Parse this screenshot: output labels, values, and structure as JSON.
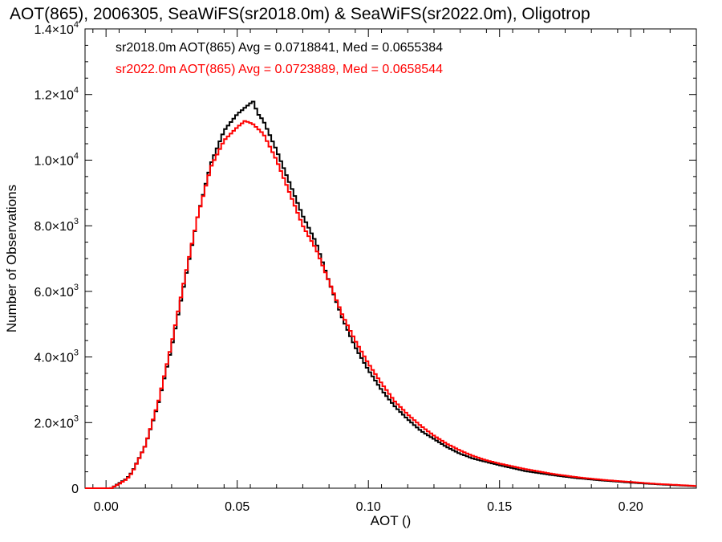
{
  "chart_data": {
    "type": "line",
    "title": "AOT(865), 2006305, SeaWiFS(sr2018.0m) & SeaWiFS(sr2022.0m), Oligotrop",
    "xlabel": "AOT ()",
    "ylabel": "Number of Observations",
    "xlim": [
      -0.008,
      0.225
    ],
    "ylim": [
      0,
      14000
    ],
    "x_ticks": [
      {
        "value": 0.0,
        "label": "0.00"
      },
      {
        "value": 0.05,
        "label": "0.05"
      },
      {
        "value": 0.1,
        "label": "0.10"
      },
      {
        "value": 0.15,
        "label": "0.15"
      },
      {
        "value": 0.2,
        "label": "0.20"
      }
    ],
    "y_ticks": [
      {
        "value": 0,
        "mantissa": "0",
        "exponent": ""
      },
      {
        "value": 2000,
        "mantissa": "2.0×10",
        "exponent": "3"
      },
      {
        "value": 4000,
        "mantissa": "4.0×10",
        "exponent": "3"
      },
      {
        "value": 6000,
        "mantissa": "6.0×10",
        "exponent": "3"
      },
      {
        "value": 8000,
        "mantissa": "8.0×10",
        "exponent": "3"
      },
      {
        "value": 10000,
        "mantissa": "1.0×10",
        "exponent": "4"
      },
      {
        "value": 12000,
        "mantissa": "1.2×10",
        "exponent": "4"
      },
      {
        "value": 14000,
        "mantissa": "1.4×10",
        "exponent": "4"
      }
    ],
    "grid": false,
    "legend_position": "top-left",
    "series": [
      {
        "name": "sr2018.0m",
        "label": "sr2018.0m AOT(865) Avg = 0.0718841, Med = 0.0655384",
        "color": "#000000",
        "x": [
          -0.008,
          0.0,
          0.002,
          0.005,
          0.008,
          0.01,
          0.015,
          0.02,
          0.025,
          0.03,
          0.035,
          0.04,
          0.045,
          0.05,
          0.053,
          0.056,
          0.058,
          0.06,
          0.065,
          0.07,
          0.075,
          0.08,
          0.085,
          0.09,
          0.095,
          0.1,
          0.105,
          0.11,
          0.115,
          0.12,
          0.125,
          0.13,
          0.135,
          0.14,
          0.145,
          0.15,
          0.16,
          0.17,
          0.18,
          0.19,
          0.2,
          0.21,
          0.225
        ],
        "y": [
          0,
          0,
          0,
          150,
          300,
          500,
          1300,
          2600,
          4300,
          6300,
          8300,
          9900,
          10900,
          11400,
          11600,
          11800,
          11400,
          11200,
          10300,
          9300,
          8300,
          7500,
          6300,
          5200,
          4300,
          3600,
          3000,
          2500,
          2100,
          1750,
          1500,
          1250,
          1050,
          900,
          800,
          700,
          520,
          400,
          300,
          230,
          170,
          120,
          60
        ]
      },
      {
        "name": "sr2022.0m",
        "label": "sr2022.0m AOT(865) Avg = 0.0723889, Med = 0.0658544",
        "color": "#ff0000",
        "x": [
          -0.008,
          0.0,
          0.002,
          0.005,
          0.008,
          0.01,
          0.015,
          0.02,
          0.025,
          0.03,
          0.035,
          0.04,
          0.045,
          0.05,
          0.053,
          0.056,
          0.058,
          0.06,
          0.065,
          0.07,
          0.075,
          0.08,
          0.085,
          0.09,
          0.095,
          0.1,
          0.105,
          0.11,
          0.115,
          0.12,
          0.125,
          0.13,
          0.135,
          0.14,
          0.145,
          0.15,
          0.16,
          0.17,
          0.18,
          0.19,
          0.2,
          0.21,
          0.225
        ],
        "y": [
          0,
          0,
          0,
          130,
          280,
          480,
          1300,
          2650,
          4400,
          6400,
          8300,
          9800,
          10600,
          11000,
          11200,
          11100,
          10950,
          10800,
          10000,
          9000,
          8000,
          7300,
          6300,
          5300,
          4500,
          3800,
          3200,
          2650,
          2250,
          1900,
          1600,
          1350,
          1150,
          980,
          850,
          750,
          580,
          440,
          330,
          250,
          190,
          130,
          70
        ]
      }
    ]
  }
}
